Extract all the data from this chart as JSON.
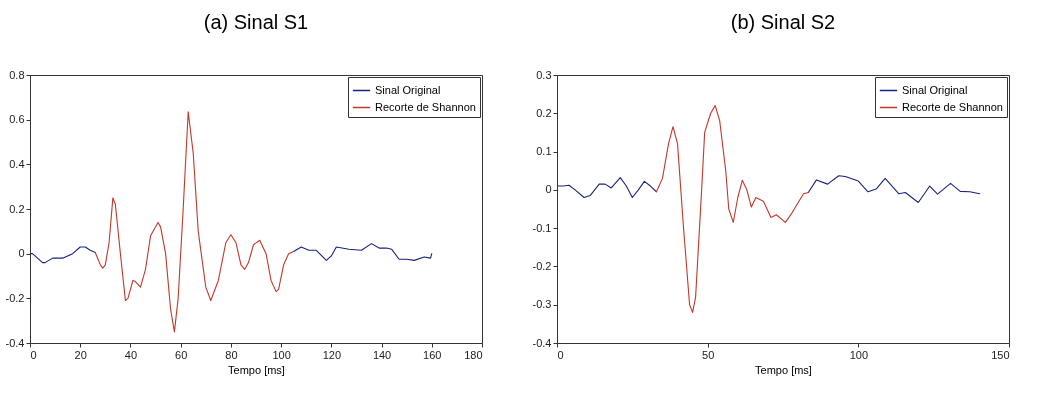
{
  "chart_data": [
    {
      "type": "line",
      "title": "(a) Sinal S1",
      "xlabel": "Tempo [ms]",
      "xlim": [
        0,
        180
      ],
      "xticks": [
        0,
        20,
        40,
        60,
        80,
        100,
        120,
        140,
        160,
        180
      ],
      "ylim": [
        -0.4,
        0.8
      ],
      "yticks": [
        -0.4,
        -0.2,
        0,
        0.2,
        0.4,
        0.6,
        0.8
      ],
      "grid": false,
      "legend": "top right",
      "line_style": "solid",
      "marker": "none",
      "series": [
        {
          "name": "Sinal Original",
          "color": "#1a237e",
          "x": [
            0,
            1,
            3,
            5,
            6,
            9,
            13,
            17,
            20,
            22,
            24,
            26,
            65,
            105,
            108,
            111,
            114,
            118,
            120,
            122,
            127,
            132,
            136,
            139,
            142,
            144,
            147,
            150,
            153,
            157,
            159.5,
            160
          ],
          "values": [
            0,
            0,
            -0.02,
            -0.04,
            -0.04,
            -0.02,
            -0.02,
            0,
            0.03,
            0.03,
            0.015,
            0.005,
            null,
            0.01,
            0.03,
            0.015,
            0.015,
            -0.03,
            -0.01,
            0.03,
            0.02,
            0.015,
            0.045,
            0.025,
            0.025,
            0.02,
            -0.025,
            -0.025,
            -0.03,
            -0.015,
            -0.02,
            0
          ]
        },
        {
          "name": "Recorte de Shannon",
          "color": "#c0392b",
          "x": [
            26,
            28,
            29,
            30,
            31.5,
            33,
            34,
            36,
            38,
            39,
            41,
            42,
            44,
            46,
            48,
            51,
            52,
            54,
            56,
            57.5,
            59,
            61,
            63,
            65,
            67,
            70,
            72,
            75,
            78,
            80,
            82,
            84,
            85.5,
            87,
            89,
            91.5,
            94,
            96,
            98,
            99,
            101,
            103,
            105
          ],
          "values": [
            0.005,
            -0.05,
            -0.065,
            -0.05,
            0.05,
            0.25,
            0.22,
            0,
            -0.21,
            -0.2,
            -0.12,
            -0.125,
            -0.15,
            -0.07,
            0.08,
            0.14,
            0.12,
            0,
            -0.25,
            -0.35,
            -0.2,
            0.2,
            0.635,
            0.45,
            0.1,
            -0.15,
            -0.21,
            -0.12,
            0.05,
            0.085,
            0.05,
            -0.05,
            -0.07,
            -0.04,
            0.04,
            0.06,
            0,
            -0.12,
            -0.17,
            -0.16,
            -0.05,
            0,
            0.01
          ]
        }
      ]
    },
    {
      "type": "line",
      "title": "(b) Sinal S2",
      "xlabel": "Tempo [ms]",
      "xlim": [
        0,
        150
      ],
      "xticks": [
        0,
        50,
        100,
        150
      ],
      "ylim": [
        -0.4,
        0.3
      ],
      "yticks": [
        -0.4,
        -0.3,
        -0.2,
        -0.1,
        0,
        0.1,
        0.2,
        0.3
      ],
      "grid": false,
      "legend": "top right",
      "line_style": "solid",
      "marker": "none",
      "series": [
        {
          "name": "Sinal Original",
          "color": "#1a237e",
          "x": [
            0,
            2,
            4,
            6,
            9,
            11,
            14,
            16,
            18,
            21,
            23,
            25,
            27,
            29,
            31,
            33,
            60,
            83.4,
            86.1,
            89.8,
            93.5,
            95.7,
            100,
            103.2,
            105.9,
            108.9,
            113.4,
            115.6,
            119.9,
            123.7,
            126.3,
            130.6,
            133.8,
            137,
            140.3
          ],
          "values": [
            0.01,
            0.01,
            0.012,
            0,
            -0.02,
            -0.015,
            0.015,
            0.015,
            0.005,
            0.032,
            0.01,
            -0.02,
            0,
            0.022,
            0.01,
            -0.005,
            null,
            -0.007,
            0.026,
            0.015,
            0.037,
            0.035,
            0.023,
            -0.005,
            0.002,
            0.03,
            -0.01,
            -0.007,
            -0.033,
            0.01,
            -0.011,
            0.017,
            -0.004,
            -0.005,
            -0.01
          ]
        },
        {
          "name": "Recorte de Shannon",
          "color": "#c0392b",
          "x": [
            33,
            35,
            37,
            38.5,
            40,
            42,
            44,
            45,
            46,
            48,
            49,
            51,
            52.5,
            54,
            56,
            57,
            58.5,
            60,
            61.5,
            63,
            64.5,
            66,
            68.5,
            71,
            72.8,
            75.8,
            78,
            81.8,
            83.4
          ],
          "values": [
            -0.005,
            0.03,
            0.12,
            0.165,
            0.12,
            -0.1,
            -0.3,
            -0.32,
            -0.28,
            0,
            0.15,
            0.2,
            0.22,
            0.18,
            0.05,
            -0.05,
            -0.085,
            -0.02,
            0.025,
            0,
            -0.045,
            -0.02,
            -0.03,
            -0.072,
            -0.065,
            -0.085,
            -0.06,
            -0.01,
            -0.007
          ]
        }
      ]
    }
  ]
}
